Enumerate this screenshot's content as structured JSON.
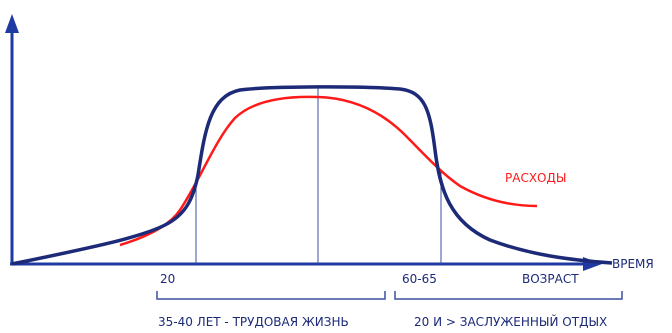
{
  "labels": {
    "x_axis": "ВРЕМЯ",
    "age_axis": "ВОЗРАСТ",
    "tick_20": "20",
    "tick_60_65": "60-65",
    "expenses": "РАСХОДЫ",
    "working_life": "35-40 ЛЕТ - ТРУДОВАЯ ЖИЗНЬ",
    "retirement": "20 И > ЗАСЛУЖЕННЫЙ ОТДЫХ"
  },
  "colors": {
    "axis": "#1f3aa3",
    "income_curve": "#1c2a78",
    "expenses_curve": "#ff1a1a",
    "guide_lines": "#3b4fa0",
    "text": "#1c2a78",
    "expenses_text": "#ff1a1a"
  }
}
